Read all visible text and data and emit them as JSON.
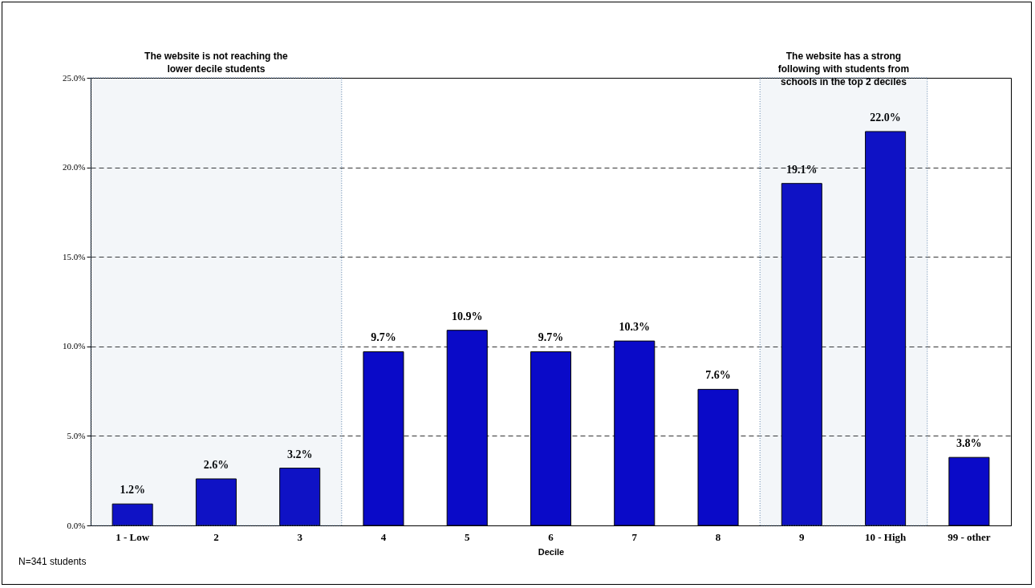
{
  "chart_data": {
    "type": "bar",
    "xlabel": "Decile",
    "categories": [
      "1 - Low",
      "2",
      "3",
      "4",
      "5",
      "6",
      "7",
      "8",
      "9",
      "10 - High",
      "99 - other"
    ],
    "values": [
      1.2,
      2.6,
      3.2,
      9.7,
      10.9,
      9.7,
      10.3,
      7.6,
      19.1,
      22.0,
      3.8
    ],
    "value_labels": [
      "1.2%",
      "2.6%",
      "3.2%",
      "9.7%",
      "10.9%",
      "9.7%",
      "10.3%",
      "7.6%",
      "19.1%",
      "22.0%",
      "3.8%"
    ],
    "color": "#0a0ac8",
    "ylim": [
      0,
      25
    ],
    "yticks": [
      {
        "value": 0,
        "label": "0.0%"
      },
      {
        "value": 5,
        "label": "5.0%"
      },
      {
        "value": 10,
        "label": "10.0%"
      },
      {
        "value": 15,
        "label": "15.0%"
      },
      {
        "value": 20,
        "label": "20.0%"
      },
      {
        "value": 25,
        "label": "25.0%"
      }
    ],
    "grid": "y",
    "bands": [
      {
        "axis": "x",
        "from": "1 - Low",
        "to": "3",
        "label": "The website is not reaching the lower decile students",
        "color": "#5a7fa8"
      },
      {
        "axis": "x",
        "from": "9",
        "to": "10 - High",
        "label": "The website has a strong following with students from schools in the top 2 deciles",
        "color": "#5a7fa8"
      }
    ],
    "annotations": [
      "N=341 students"
    ]
  }
}
